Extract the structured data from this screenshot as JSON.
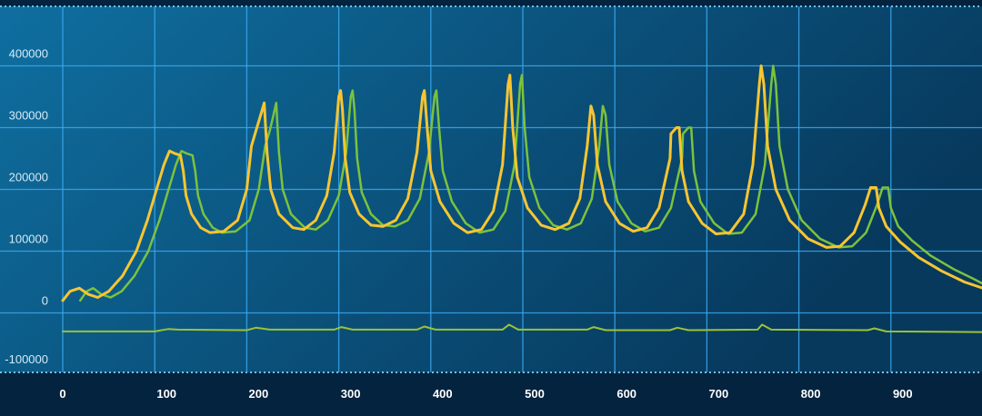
{
  "chart_data": {
    "type": "line",
    "title": "",
    "xlabel": "",
    "ylabel": "",
    "xlim": [
      0,
      1000
    ],
    "ylim": [
      -100000,
      490000
    ],
    "grid": true,
    "x_ticks": [
      "0",
      "100",
      "200",
      "300",
      "400",
      "500",
      "600",
      "700",
      "800",
      "900"
    ],
    "y_ticks": [
      "400000",
      "300000",
      "200000",
      "100000",
      "0",
      "-100000"
    ],
    "colors": {
      "background_left": "#0f6fa0",
      "background_right": "#07395d",
      "axis_band": "#03233f",
      "grid": "#3aa8f0",
      "series_yellow": "#f7c531",
      "series_green": "#7cc23c",
      "series_baseline": "#9cc234"
    },
    "series": [
      {
        "color": "#7cc23c",
        "points": [
          [
            19,
            20000
          ],
          [
            26,
            35000
          ],
          [
            33,
            40000
          ],
          [
            42,
            30000
          ],
          [
            52,
            25000
          ],
          [
            64,
            35000
          ],
          [
            78,
            60000
          ],
          [
            93,
            100000
          ],
          [
            105,
            150000
          ],
          [
            115,
            200000
          ],
          [
            123,
            240000
          ],
          [
            129,
            262000
          ],
          [
            135,
            258000
          ],
          [
            141,
            255000
          ],
          [
            144,
            230000
          ],
          [
            147,
            190000
          ],
          [
            153,
            160000
          ],
          [
            163,
            138000
          ],
          [
            173,
            130000
          ],
          [
            188,
            132000
          ],
          [
            203,
            150000
          ],
          [
            213,
            200000
          ],
          [
            220,
            270000
          ],
          [
            225,
            295000
          ],
          [
            229,
            320000
          ],
          [
            232,
            340000
          ],
          [
            235,
            260000
          ],
          [
            239,
            200000
          ],
          [
            248,
            160000
          ],
          [
            263,
            138000
          ],
          [
            275,
            135000
          ],
          [
            288,
            150000
          ],
          [
            300,
            190000
          ],
          [
            308,
            260000
          ],
          [
            313,
            350000
          ],
          [
            315,
            360000
          ],
          [
            317,
            330000
          ],
          [
            320,
            250000
          ],
          [
            325,
            195000
          ],
          [
            335,
            160000
          ],
          [
            348,
            142000
          ],
          [
            361,
            140000
          ],
          [
            375,
            150000
          ],
          [
            388,
            185000
          ],
          [
            398,
            260000
          ],
          [
            404,
            350000
          ],
          [
            406,
            360000
          ],
          [
            409,
            300000
          ],
          [
            413,
            230000
          ],
          [
            423,
            180000
          ],
          [
            438,
            145000
          ],
          [
            453,
            130000
          ],
          [
            468,
            135000
          ],
          [
            481,
            165000
          ],
          [
            491,
            240000
          ],
          [
            497,
            370000
          ],
          [
            499,
            385000
          ],
          [
            502,
            300000
          ],
          [
            507,
            220000
          ],
          [
            518,
            170000
          ],
          [
            533,
            142000
          ],
          [
            548,
            135000
          ],
          [
            563,
            145000
          ],
          [
            575,
            185000
          ],
          [
            583,
            270000
          ],
          [
            587,
            335000
          ],
          [
            590,
            320000
          ],
          [
            594,
            240000
          ],
          [
            603,
            180000
          ],
          [
            618,
            145000
          ],
          [
            633,
            132000
          ],
          [
            648,
            138000
          ],
          [
            661,
            170000
          ],
          [
            673,
            250000
          ],
          [
            674,
            290000
          ],
          [
            680,
            300000
          ],
          [
            683,
            300000
          ],
          [
            686,
            230000
          ],
          [
            693,
            180000
          ],
          [
            708,
            145000
          ],
          [
            723,
            128000
          ],
          [
            738,
            130000
          ],
          [
            753,
            160000
          ],
          [
            763,
            240000
          ],
          [
            770,
            370000
          ],
          [
            772,
            400000
          ],
          [
            775,
            370000
          ],
          [
            779,
            270000
          ],
          [
            788,
            200000
          ],
          [
            803,
            150000
          ],
          [
            823,
            120000
          ],
          [
            843,
            106000
          ],
          [
            858,
            108000
          ],
          [
            873,
            130000
          ],
          [
            885,
            175000
          ],
          [
            891,
            203000
          ],
          [
            897,
            203000
          ],
          [
            900,
            170000
          ],
          [
            908,
            140000
          ],
          [
            923,
            117000
          ],
          [
            943,
            93000
          ],
          [
            968,
            71000
          ],
          [
            990,
            55000
          ],
          [
            1000,
            47000
          ]
        ]
      },
      {
        "color": "#f7c531",
        "points": [
          [
            0,
            20000
          ],
          [
            8,
            35000
          ],
          [
            18,
            40000
          ],
          [
            28,
            30000
          ],
          [
            38,
            25000
          ],
          [
            50,
            35000
          ],
          [
            65,
            60000
          ],
          [
            80,
            100000
          ],
          [
            92,
            150000
          ],
          [
            102,
            200000
          ],
          [
            110,
            240000
          ],
          [
            116,
            262000
          ],
          [
            122,
            258000
          ],
          [
            128,
            255000
          ],
          [
            131,
            230000
          ],
          [
            134,
            190000
          ],
          [
            140,
            160000
          ],
          [
            150,
            138000
          ],
          [
            160,
            130000
          ],
          [
            175,
            132000
          ],
          [
            190,
            150000
          ],
          [
            200,
            200000
          ],
          [
            205,
            270000
          ],
          [
            210,
            295000
          ],
          [
            215,
            320000
          ],
          [
            219,
            340000
          ],
          [
            222,
            260000
          ],
          [
            226,
            200000
          ],
          [
            235,
            160000
          ],
          [
            250,
            138000
          ],
          [
            262,
            135000
          ],
          [
            275,
            150000
          ],
          [
            287,
            190000
          ],
          [
            295,
            260000
          ],
          [
            300,
            350000
          ],
          [
            302,
            360000
          ],
          [
            304,
            330000
          ],
          [
            307,
            250000
          ],
          [
            312,
            195000
          ],
          [
            322,
            160000
          ],
          [
            335,
            142000
          ],
          [
            348,
            140000
          ],
          [
            362,
            150000
          ],
          [
            375,
            185000
          ],
          [
            385,
            260000
          ],
          [
            391,
            350000
          ],
          [
            393,
            360000
          ],
          [
            396,
            300000
          ],
          [
            400,
            230000
          ],
          [
            410,
            180000
          ],
          [
            425,
            145000
          ],
          [
            440,
            130000
          ],
          [
            455,
            135000
          ],
          [
            468,
            165000
          ],
          [
            478,
            240000
          ],
          [
            484,
            370000
          ],
          [
            486,
            385000
          ],
          [
            489,
            300000
          ],
          [
            494,
            220000
          ],
          [
            505,
            170000
          ],
          [
            520,
            142000
          ],
          [
            535,
            135000
          ],
          [
            550,
            145000
          ],
          [
            562,
            185000
          ],
          [
            570,
            270000
          ],
          [
            574,
            335000
          ],
          [
            577,
            320000
          ],
          [
            581,
            240000
          ],
          [
            590,
            180000
          ],
          [
            605,
            145000
          ],
          [
            620,
            132000
          ],
          [
            635,
            138000
          ],
          [
            648,
            170000
          ],
          [
            660,
            250000
          ],
          [
            661,
            290000
          ],
          [
            667,
            300000
          ],
          [
            670,
            300000
          ],
          [
            673,
            230000
          ],
          [
            680,
            180000
          ],
          [
            695,
            145000
          ],
          [
            710,
            128000
          ],
          [
            725,
            130000
          ],
          [
            740,
            160000
          ],
          [
            750,
            240000
          ],
          [
            757,
            370000
          ],
          [
            759,
            400000
          ],
          [
            762,
            370000
          ],
          [
            766,
            270000
          ],
          [
            775,
            200000
          ],
          [
            790,
            150000
          ],
          [
            810,
            120000
          ],
          [
            830,
            106000
          ],
          [
            845,
            108000
          ],
          [
            860,
            130000
          ],
          [
            872,
            175000
          ],
          [
            878,
            203000
          ],
          [
            884,
            203000
          ],
          [
            887,
            170000
          ],
          [
            895,
            140000
          ],
          [
            910,
            115000
          ],
          [
            930,
            90000
          ],
          [
            955,
            68000
          ],
          [
            980,
            50000
          ],
          [
            1000,
            40000
          ]
        ]
      },
      {
        "color": "#9cc234",
        "points": [
          [
            0,
            -30000
          ],
          [
            100,
            -30000
          ],
          [
            115,
            -26000
          ],
          [
            125,
            -27000
          ],
          [
            200,
            -28000
          ],
          [
            210,
            -24000
          ],
          [
            225,
            -27000
          ],
          [
            295,
            -27000
          ],
          [
            303,
            -23000
          ],
          [
            315,
            -27000
          ],
          [
            385,
            -27000
          ],
          [
            393,
            -22000
          ],
          [
            405,
            -27000
          ],
          [
            478,
            -27000
          ],
          [
            485,
            -19000
          ],
          [
            495,
            -27000
          ],
          [
            570,
            -27000
          ],
          [
            577,
            -23000
          ],
          [
            590,
            -28000
          ],
          [
            660,
            -28000
          ],
          [
            668,
            -24000
          ],
          [
            680,
            -28000
          ],
          [
            755,
            -27000
          ],
          [
            760,
            -19000
          ],
          [
            770,
            -27000
          ],
          [
            875,
            -28000
          ],
          [
            882,
            -25000
          ],
          [
            895,
            -30000
          ],
          [
            1000,
            -31000
          ]
        ]
      }
    ]
  }
}
